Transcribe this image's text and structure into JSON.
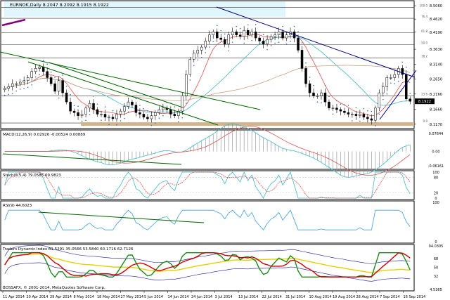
{
  "window": {
    "main_title": "EURNOK,Daily  8.2047 8.2092 8.1915 8.1922",
    "watermark": "BOSSAFX, © 2001-2014, MetaQuotes Software Corp."
  },
  "chart_data": {
    "type": "candlestick",
    "symbol": "EURNOK",
    "timeframe": "Daily",
    "header_values": {
      "open": 8.2047,
      "high": 8.2092,
      "low": 8.1915,
      "close": 8.1922
    },
    "x_tick_labels": [
      "11 Apr 2014",
      "20 Apr 2014",
      "29 Apr 2014",
      "8 May 2014",
      "18 May 2014",
      "27 May 2014",
      "5 Jun 2014",
      "14 Jun 2014",
      "24 Jun 2014",
      "3 Jul 2014",
      "13 Jul 2014",
      "22 Jul 2014",
      "31 Jul 2014",
      "10 Aug 2014",
      "19 Aug 2014",
      "28 Aug 2014",
      "7 Sep 2014",
      "16 Sep 2014"
    ],
    "price_panel": {
      "y_tick_labels": [
        "8.5060",
        "8.4620",
        "8.4190",
        "8.3630",
        "8.3140",
        "8.2650",
        "8.2160",
        "8.1660",
        "8.1170"
      ],
      "ylim": [
        8.105,
        8.52
      ],
      "current_price": "8.1922",
      "fib_levels": [
        {
          "label": "100.0",
          "price": 8.5
        },
        {
          "label": "76.4",
          "price": 8.4645
        },
        {
          "label": "61.8",
          "price": 8.4168
        },
        {
          "label": "50.0",
          "price": 8.3782
        },
        {
          "label": "38.2",
          "price": 8.3348
        },
        {
          "label": "23.6",
          "price": 8.2095
        },
        {
          "label": "0.0",
          "price": 8.121
        }
      ],
      "close_values": [
        8.235,
        8.24,
        8.25,
        8.25,
        8.255,
        8.26,
        8.27,
        8.29,
        8.3,
        8.305,
        8.29,
        8.27,
        8.25,
        8.225,
        8.26,
        8.22,
        8.19,
        8.16,
        8.155,
        8.145,
        8.15,
        8.17,
        8.185,
        8.165,
        8.15,
        8.15,
        8.14,
        8.14,
        8.135,
        8.15,
        8.16,
        8.175,
        8.19,
        8.18,
        8.155,
        8.15,
        8.14,
        8.135,
        8.145,
        8.155,
        8.165,
        8.17,
        8.165,
        8.15,
        8.145,
        8.16,
        8.21,
        8.28,
        8.33,
        8.35,
        8.36,
        8.37,
        8.39,
        8.41,
        8.42,
        8.4,
        8.395,
        8.38,
        8.41,
        8.42,
        8.41,
        8.405,
        8.425,
        8.41,
        8.42,
        8.4,
        8.39,
        8.38,
        8.395,
        8.405,
        8.41,
        8.42,
        8.4,
        8.41,
        8.42,
        8.4,
        8.36,
        8.3,
        8.25,
        8.22,
        8.21,
        8.21,
        8.22,
        8.19,
        8.17,
        8.17,
        8.165,
        8.16,
        8.155,
        8.15,
        8.15,
        8.145,
        8.15,
        8.14,
        8.135,
        8.13,
        8.17,
        8.22,
        8.24,
        8.27,
        8.27,
        8.28,
        8.3,
        8.28,
        8.2,
        8.1922
      ]
    },
    "macd_panel": {
      "label": "MACD(12,26,9) 0.02926 -0.00524 0.00889",
      "y_tick_labels": [
        "0.07644",
        "0.00",
        "-0.06161"
      ],
      "ylim": [
        -0.07,
        0.085
      ]
    },
    "stoch_panel": {
      "label": "Stoch(5,5,4) 79.0585 69.9823",
      "y_tick_labels": [
        "100",
        "80",
        "20",
        "0"
      ],
      "ylim": [
        0,
        100
      ]
    },
    "rsi_panel": {
      "label": "RSI(9) 44.6023",
      "y_tick_labels": [
        "100",
        "0"
      ],
      "ylim": [
        0,
        100
      ]
    },
    "tdi_panel": {
      "label": "Traders Dynamic Index 61.5291 35.0566 53.5840 60.1716 62.7126",
      "y_tick_labels": [
        "94.0305",
        "68",
        "50",
        "32",
        "4.5365"
      ],
      "ylim": [
        4.5365,
        94.0305
      ]
    }
  }
}
